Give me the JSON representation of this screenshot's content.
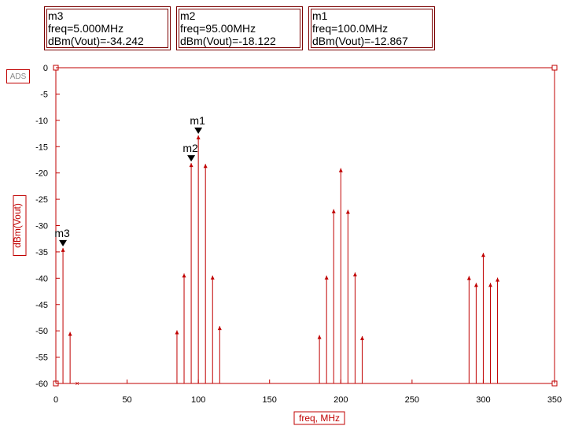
{
  "markers": [
    {
      "name": "m3",
      "freq_label": "freq=5.000MHz",
      "value_label": "dBm(Vout)=-34.242",
      "x": 5,
      "y": -34.242
    },
    {
      "name": "m2",
      "freq_label": "freq=95.00MHz",
      "value_label": "dBm(Vout)=-18.122",
      "x": 95,
      "y": -18.122
    },
    {
      "name": "m1",
      "freq_label": "freq=100.0MHz",
      "value_label": "dBm(Vout)=-12.867",
      "x": 100,
      "y": -12.867
    }
  ],
  "badge": "ADS",
  "chart_data": {
    "type": "stem",
    "xlabel": "freq, MHz",
    "ylabel": "dBm(Vout)",
    "xlim": [
      0,
      350
    ],
    "ylim": [
      -60,
      0
    ],
    "x_ticks": [
      0,
      50,
      100,
      150,
      200,
      250,
      300,
      350
    ],
    "y_ticks": [
      0,
      -5,
      -10,
      -15,
      -20,
      -25,
      -30,
      -35,
      -40,
      -45,
      -50,
      -55,
      -60
    ],
    "grid": false,
    "colors": {
      "stem": "#c00000",
      "axis": "#c00000",
      "marker": "#000000"
    },
    "series": [
      {
        "points": [
          {
            "x": 5,
            "y": -34.242
          },
          {
            "x": 10,
            "y": -50.2
          },
          {
            "x": 85,
            "y": -49.9
          },
          {
            "x": 90,
            "y": -39.1
          },
          {
            "x": 95,
            "y": -18.122
          },
          {
            "x": 100,
            "y": -12.867
          },
          {
            "x": 105,
            "y": -18.3
          },
          {
            "x": 110,
            "y": -39.5
          },
          {
            "x": 115,
            "y": -49.1
          },
          {
            "x": 185,
            "y": -50.8
          },
          {
            "x": 190,
            "y": -39.5
          },
          {
            "x": 195,
            "y": -26.9
          },
          {
            "x": 200,
            "y": -19.1
          },
          {
            "x": 205,
            "y": -27.0
          },
          {
            "x": 210,
            "y": -38.9
          },
          {
            "x": 215,
            "y": -51.0
          },
          {
            "x": 290,
            "y": -39.6
          },
          {
            "x": 295,
            "y": -40.9
          },
          {
            "x": 300,
            "y": -35.2
          },
          {
            "x": 305,
            "y": -40.9
          },
          {
            "x": 310,
            "y": -39.9
          }
        ]
      }
    ]
  }
}
